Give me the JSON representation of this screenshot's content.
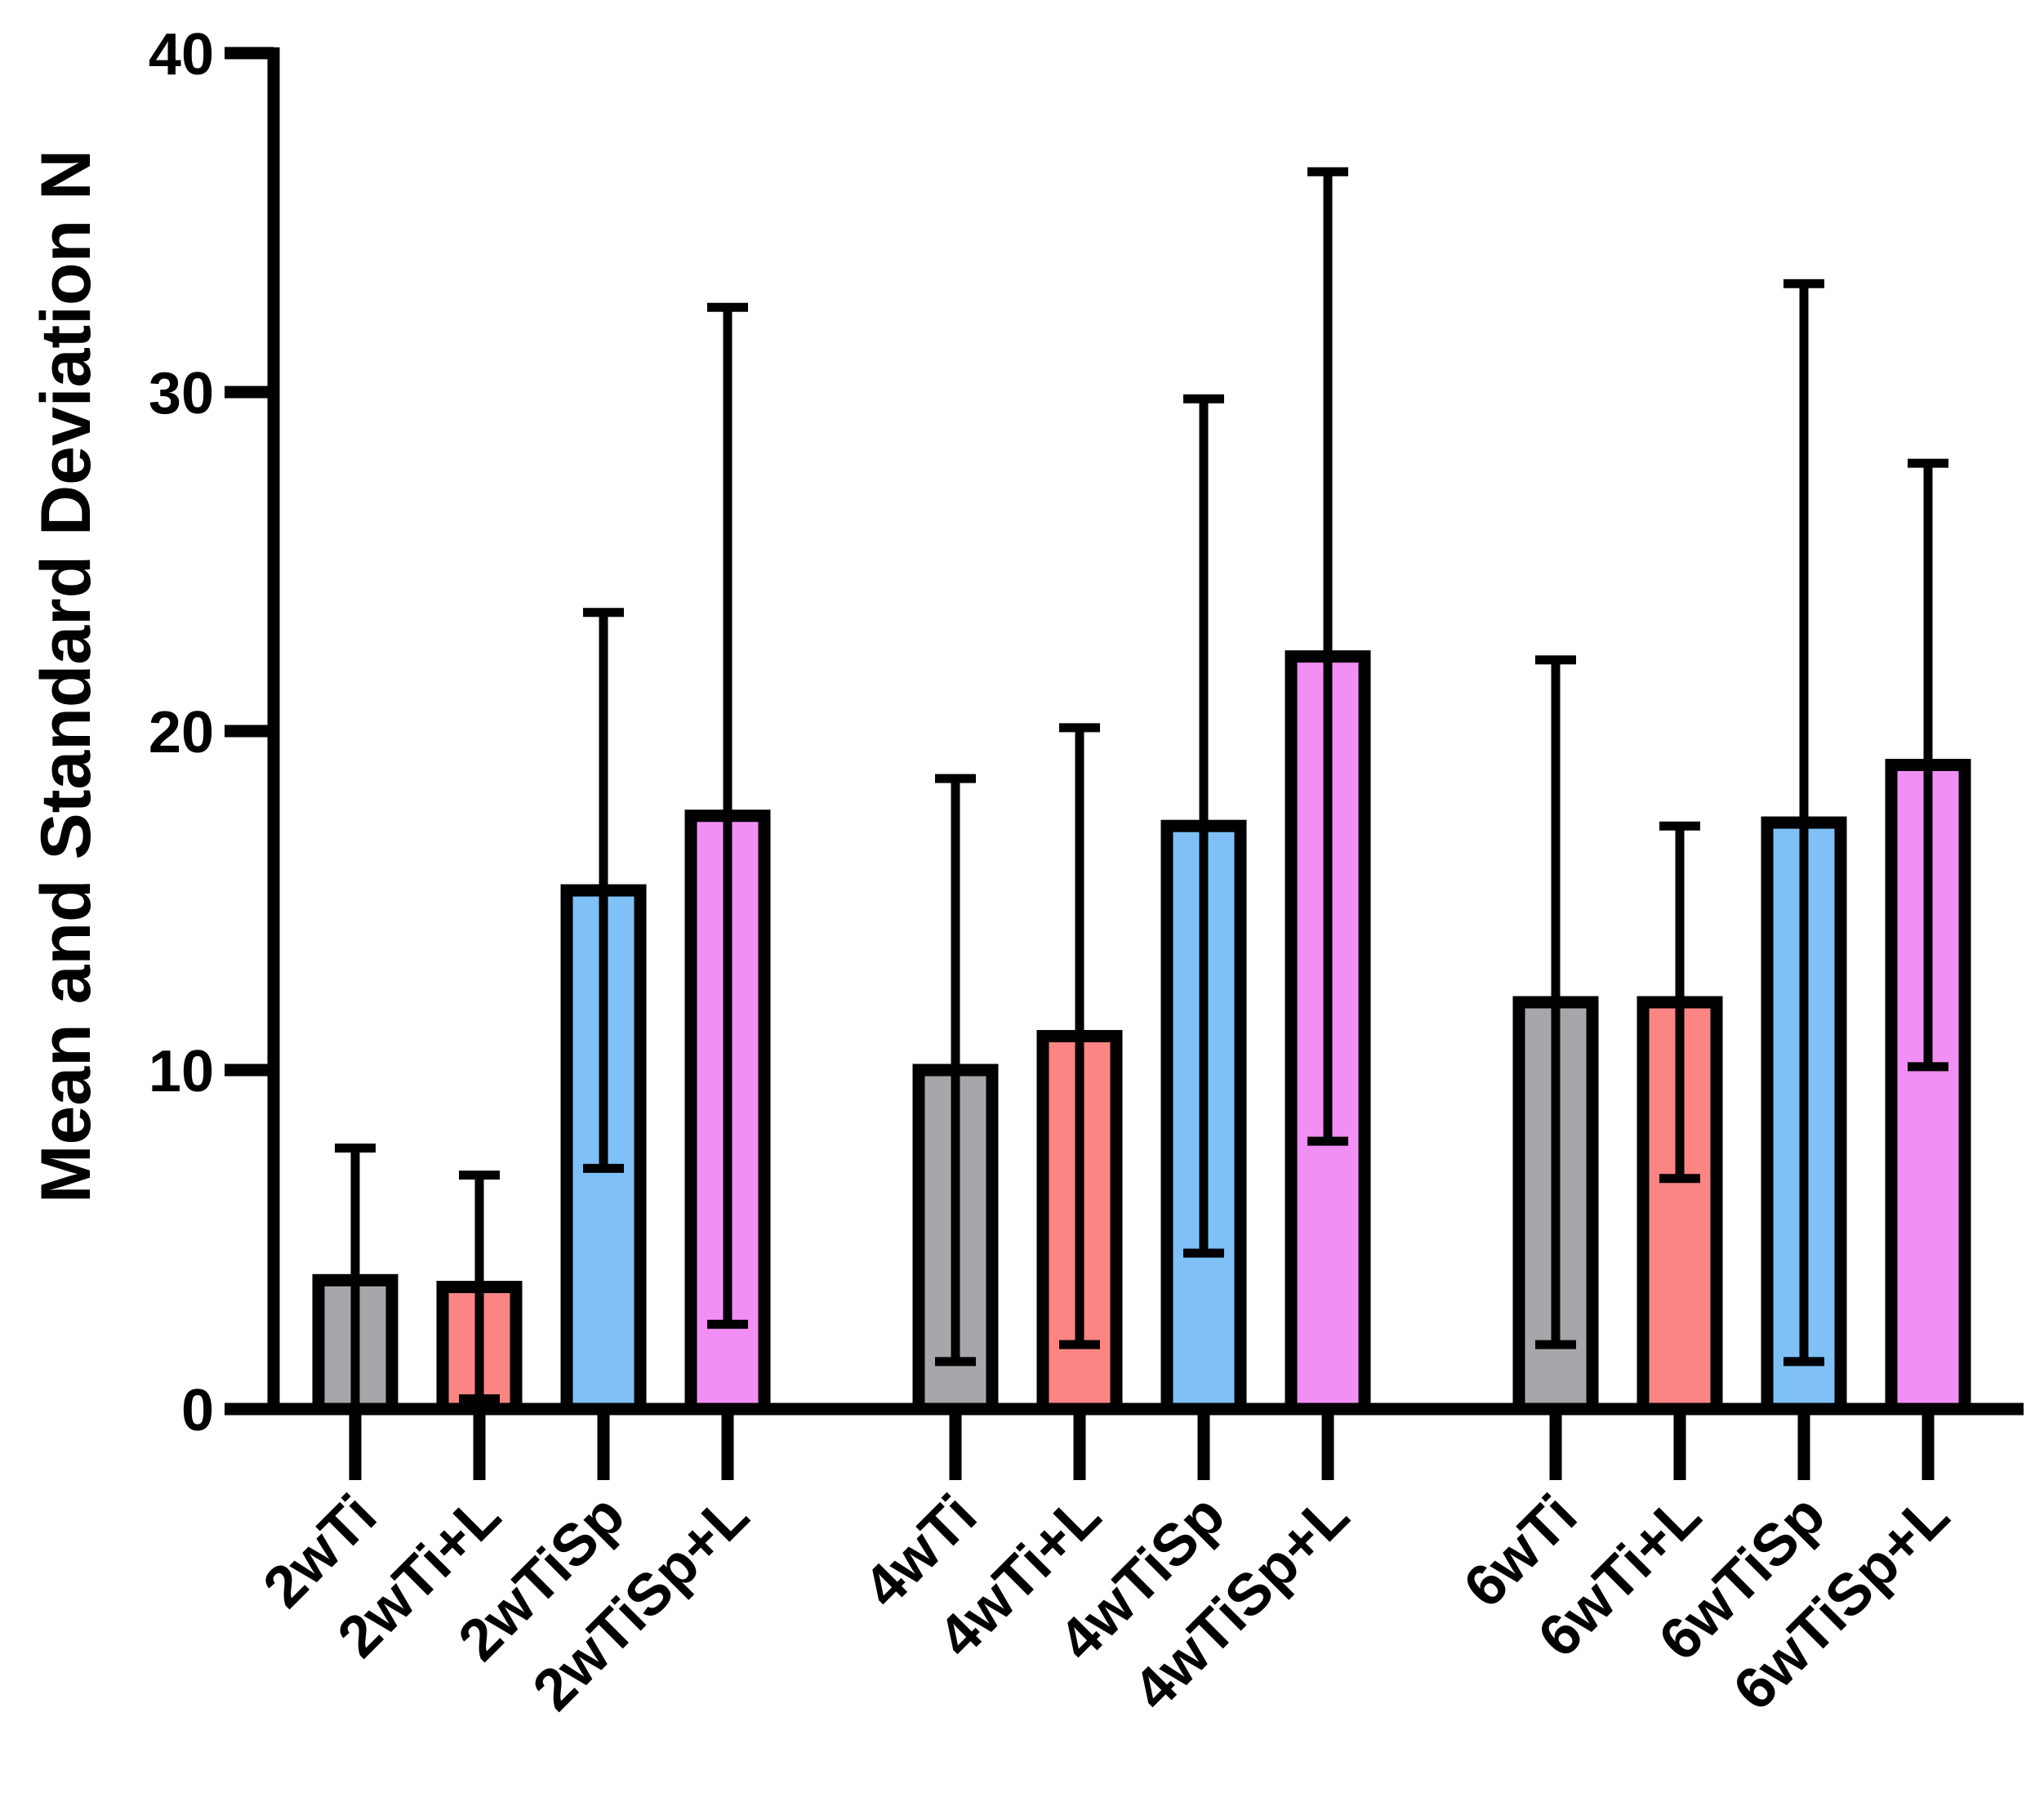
{
  "chart_data": {
    "type": "bar",
    "title": "",
    "xlabel": "",
    "ylabel": "Mean and Standard Deviation N",
    "ylim": [
      0,
      40
    ],
    "yticks": [
      0,
      10,
      20,
      30,
      40
    ],
    "grid": false,
    "groups": [
      {
        "bars": [
          {
            "label": "2wTi",
            "mean": 3.8,
            "sd": 3.9,
            "color": "#a7a7ab"
          },
          {
            "label": "2wTi+L",
            "mean": 3.6,
            "sd": 3.3,
            "color": "#fa8583"
          },
          {
            "label": "2wTiSp",
            "mean": 15.3,
            "sd": 8.2,
            "color": "#7fc1f7"
          },
          {
            "label": "2wTiSp+L",
            "mean": 17.5,
            "sd": 15.0,
            "color": "#f28ff4"
          }
        ]
      },
      {
        "bars": [
          {
            "label": "4wTi",
            "mean": 10.0,
            "sd": 8.6,
            "color": "#a7a7ab"
          },
          {
            "label": "4wTi+L",
            "mean": 11.0,
            "sd": 9.1,
            "color": "#fa8583"
          },
          {
            "label": "4wTiSp",
            "mean": 17.2,
            "sd": 12.6,
            "color": "#7fc1f7"
          },
          {
            "label": "4wTiSp+L",
            "mean": 22.2,
            "sd": 14.3,
            "color": "#f28ff4"
          }
        ]
      },
      {
        "bars": [
          {
            "label": "6wTi",
            "mean": 12.0,
            "sd": 10.1,
            "color": "#a7a7ab"
          },
          {
            "label": "6wTi+L",
            "mean": 12.0,
            "sd": 5.2,
            "color": "#fa8583"
          },
          {
            "label": "6wTiSp",
            "mean": 17.3,
            "sd": 15.9,
            "color": "#7fc1f7"
          },
          {
            "label": "6wTiSp+L",
            "mean": 19.0,
            "sd": 8.9,
            "color": "#f28ff4"
          }
        ]
      }
    ]
  }
}
